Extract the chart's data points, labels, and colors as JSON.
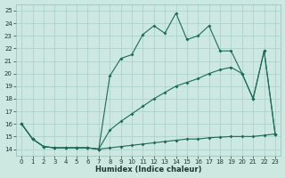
{
  "xlabel": "Humidex (Indice chaleur)",
  "bg_color": "#cce8e0",
  "grid_color": "#aad4cc",
  "line_color": "#1a6b58",
  "xlim": [
    -0.5,
    23.5
  ],
  "ylim": [
    13.5,
    25.5
  ],
  "xticks": [
    0,
    1,
    2,
    3,
    4,
    5,
    6,
    7,
    8,
    9,
    10,
    11,
    12,
    13,
    14,
    15,
    16,
    17,
    18,
    19,
    20,
    21,
    22,
    23
  ],
  "yticks": [
    14,
    15,
    16,
    17,
    18,
    19,
    20,
    21,
    22,
    23,
    24,
    25
  ],
  "line1_x": [
    0,
    1,
    2,
    3,
    4,
    5,
    6,
    7,
    8,
    9,
    10,
    11,
    12,
    13,
    14,
    15,
    16,
    17,
    18,
    19,
    20,
    21,
    22,
    23
  ],
  "line1_y": [
    16.0,
    14.8,
    14.2,
    14.1,
    14.1,
    14.1,
    14.1,
    14.0,
    19.8,
    21.2,
    21.5,
    23.1,
    23.8,
    23.2,
    24.8,
    22.7,
    23.0,
    23.8,
    21.8,
    21.8,
    20.0,
    18.0,
    21.8,
    15.2
  ],
  "line2_x": [
    0,
    1,
    2,
    3,
    4,
    5,
    6,
    7,
    8,
    9,
    10,
    11,
    12,
    13,
    14,
    15,
    16,
    17,
    18,
    19,
    20,
    21,
    22,
    23
  ],
  "line2_y": [
    16.0,
    14.8,
    14.2,
    14.1,
    14.1,
    14.1,
    14.1,
    14.0,
    15.5,
    16.2,
    16.8,
    17.4,
    18.0,
    18.5,
    19.0,
    19.3,
    19.6,
    20.0,
    20.3,
    20.5,
    20.0,
    18.0,
    21.8,
    15.2
  ],
  "line3_x": [
    0,
    1,
    2,
    3,
    4,
    5,
    6,
    7,
    8,
    9,
    10,
    11,
    12,
    13,
    14,
    15,
    16,
    17,
    18,
    19,
    20,
    21,
    22,
    23
  ],
  "line3_y": [
    16.0,
    14.8,
    14.2,
    14.1,
    14.1,
    14.1,
    14.1,
    14.0,
    14.1,
    14.2,
    14.3,
    14.4,
    14.5,
    14.6,
    14.7,
    14.8,
    14.8,
    14.9,
    14.95,
    15.0,
    15.0,
    15.0,
    15.1,
    15.2
  ]
}
